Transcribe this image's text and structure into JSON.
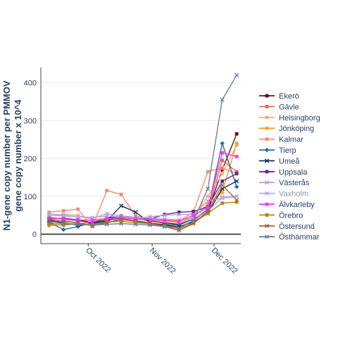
{
  "chart_data": {
    "type": "line",
    "ylabel": "N1-gene copy number per PMMOV\ngene copy number x 10^4",
    "xlabel": "",
    "x_ticks": [
      {
        "label": "Oct 2022",
        "date": "2022-10-01"
      },
      {
        "label": "Nov 2022",
        "date": "2022-11-01"
      },
      {
        "label": "Dec 2022",
        "date": "2022-12-01"
      }
    ],
    "xlim": [
      "2022-09-08",
      "2022-12-14"
    ],
    "ylim": [
      -25,
      440
    ],
    "y_ticks": [
      0,
      100,
      200,
      300,
      400
    ],
    "grid": "horizontal",
    "legend_position": "right",
    "x": [
      "2022-09-12",
      "2022-09-19",
      "2022-09-26",
      "2022-10-03",
      "2022-10-10",
      "2022-10-17",
      "2022-10-24",
      "2022-10-31",
      "2022-11-07",
      "2022-11-14",
      "2022-11-21",
      "2022-11-28",
      "2022-12-05",
      "2022-12-12"
    ],
    "series": [
      {
        "name": "Ekerö",
        "color": "#6a0d21",
        "marker": "square",
        "values": [
          40,
          42,
          38,
          30,
          34,
          48,
          42,
          35,
          30,
          26,
          40,
          60,
          170,
          265
        ]
      },
      {
        "name": "Gävle",
        "color": "#e8685a",
        "marker": "square",
        "values": [
          32,
          36,
          30,
          24,
          30,
          38,
          34,
          26,
          22,
          18,
          36,
          62,
          195,
          165
        ]
      },
      {
        "name": "Helsingborg",
        "color": "#f4b183",
        "marker": "square",
        "values": [
          48,
          52,
          50,
          38,
          44,
          46,
          40,
          38,
          34,
          30,
          46,
          100,
          160,
          235
        ]
      },
      {
        "name": "Jönköping",
        "color": "#f2a31a",
        "marker": "diamond",
        "values": [
          22,
          26,
          28,
          32,
          40,
          36,
          44,
          40,
          36,
          30,
          44,
          80,
          110,
          240
        ]
      },
      {
        "name": "Kalmar",
        "color": "#f28e6f",
        "marker": "square",
        "values": [
          58,
          62,
          66,
          20,
          115,
          105,
          48,
          40,
          38,
          35,
          58,
          165,
          175,
          160
        ]
      },
      {
        "name": "Tierp",
        "color": "#2e6aa6",
        "marker": "diamond",
        "values": [
          32,
          12,
          20,
          30,
          38,
          42,
          34,
          28,
          26,
          24,
          40,
          65,
          240,
          125
        ]
      },
      {
        "name": "Umeå",
        "color": "#172e5c",
        "marker": "cross",
        "values": [
          36,
          30,
          24,
          28,
          35,
          75,
          58,
          30,
          24,
          20,
          32,
          55,
          120,
          140
        ]
      },
      {
        "name": "Uppsala",
        "color": "#5b2a8e",
        "marker": "square",
        "values": [
          44,
          40,
          36,
          30,
          42,
          48,
          44,
          40,
          52,
          58,
          60,
          72,
          140,
          160
        ]
      },
      {
        "name": "Västerås",
        "color": "#c39bd3",
        "marker": "cross",
        "values": [
          54,
          50,
          46,
          42,
          54,
          48,
          42,
          46,
          50,
          52,
          52,
          88,
          95,
          100
        ]
      },
      {
        "name": "Vaxholm",
        "color": "#b9a5e6",
        "marker": "cross",
        "values": [
          50,
          48,
          46,
          44,
          48,
          46,
          44,
          42,
          40,
          38,
          42,
          60,
          98,
          100
        ]
      },
      {
        "name": "Älvkarleby",
        "color": "#ff33ff",
        "marker": "square",
        "values": [
          42,
          40,
          38,
          36,
          40,
          44,
          40,
          38,
          36,
          34,
          50,
          70,
          215,
          205
        ]
      },
      {
        "name": "Örebro",
        "color": "#b8860b",
        "marker": "square",
        "values": [
          26,
          24,
          28,
          26,
          32,
          34,
          30,
          28,
          22,
          14,
          30,
          55,
          82,
          85
        ]
      },
      {
        "name": "Östersund",
        "color": "#a0623c",
        "marker": "cross",
        "values": [
          38,
          34,
          30,
          22,
          30,
          40,
          36,
          30,
          20,
          10,
          28,
          60,
          130,
          90
        ]
      },
      {
        "name": "Östhammar",
        "color": "#6f7f99",
        "marker": "cross",
        "values": [
          30,
          28,
          26,
          24,
          26,
          28,
          26,
          24,
          20,
          16,
          36,
          120,
          355,
          420
        ]
      }
    ]
  }
}
